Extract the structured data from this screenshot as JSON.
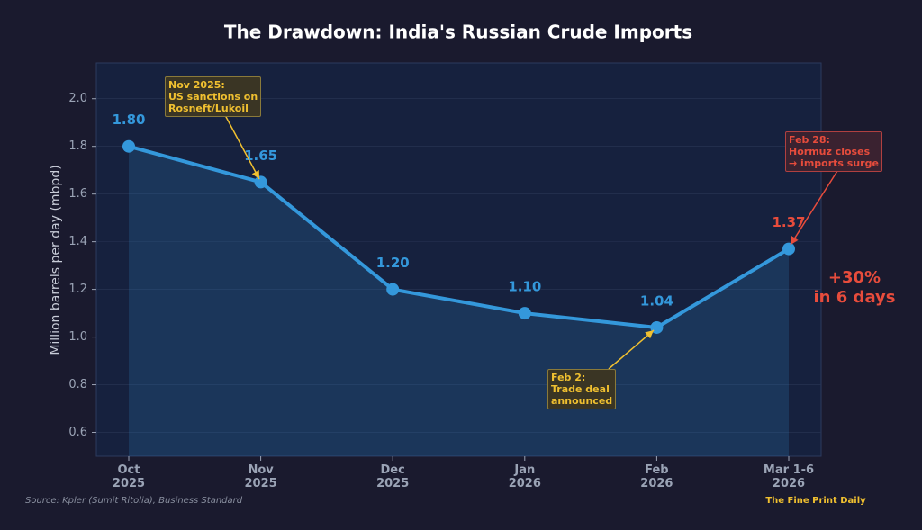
{
  "chart_data": {
    "type": "line",
    "title": "The Drawdown: India's Russian Crude Imports",
    "y_label": "Million barrels per day (mbpd)",
    "categories": [
      "Oct\n2025",
      "Nov\n2025",
      "Dec\n2025",
      "Jan\n2026",
      "Feb\n2026",
      "Mar 1-6\n2026"
    ],
    "values": [
      1.8,
      1.65,
      1.2,
      1.1,
      1.04,
      1.37
    ],
    "value_labels": [
      "1.80",
      "1.65",
      "1.20",
      "1.10",
      "1.04",
      "1.37"
    ],
    "color": "#3498db",
    "ylim": [
      0.5,
      2.15
    ],
    "yticks": [
      0.6,
      0.8,
      {
        "value": 1,
        "label": "1.0"
      },
      1.2,
      1.4,
      1.6,
      1.8,
      {
        "value": 2,
        "label": "2.0"
      }
    ],
    "grid": true,
    "annotations": [
      "Nov 2025:\nUS sanctions on\nRosneft/Lukoil",
      "Feb 2:\nTrade deal\nannounced",
      "Feb 28:\nHormuz closes\n→ imports surge",
      "+30%\nin 6 days"
    ],
    "source": "Source: Kpler (Sumit Ritolia), Business Standard",
    "brand": "The Fine Print Daily"
  }
}
